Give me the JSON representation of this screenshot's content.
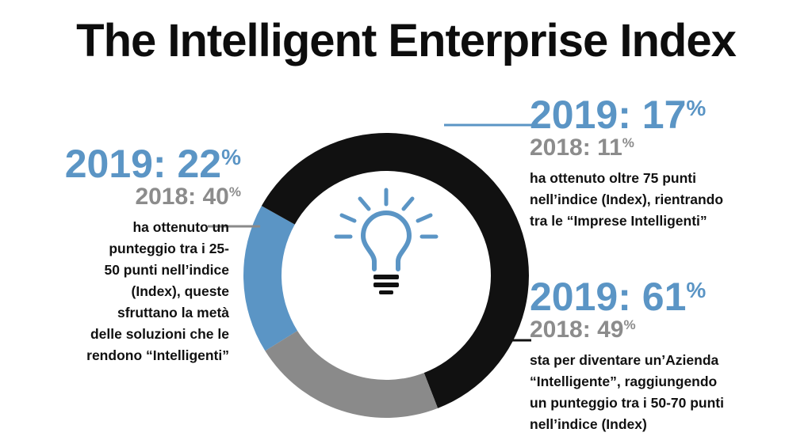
{
  "title": "The Intelligent Enterprise Index",
  "colors": {
    "blue": "#5b95c5",
    "gray": "#8a8a8a",
    "black": "#111111",
    "muted_text": "#8c8c8c"
  },
  "icon": "lightbulb-icon",
  "chart_data": {
    "type": "pie",
    "title": "The Intelligent Enterprise Index",
    "series": [
      {
        "values": [
          17,
          61,
          22
        ],
        "colors": [
          "#5b95c5",
          "#111111",
          "#8a8a8a"
        ]
      }
    ]
  },
  "segments": {
    "top": {
      "y2019_label": "2019: 17",
      "y2018_label": "2018: 11",
      "pct": "%",
      "desc": [
        "ha ottenuto oltre 75 punti",
        "nell’indice (Index), rientrando",
        "tra le “Imprese Intelligenti”"
      ]
    },
    "right": {
      "y2019_label": "2019: 61",
      "y2018_label": "2018: 49",
      "pct": "%",
      "desc": [
        "sta per diventare un’Azienda",
        "“Intelligente”, raggiungendo",
        "un punteggio tra i 50-70 punti",
        "nell’indice (Index)"
      ]
    },
    "left": {
      "y2019_label": "2019: 22",
      "y2018_label": "2018: 40",
      "pct": "%",
      "desc": [
        "ha ottenuto un",
        "punteggio tra i 25-",
        "50 punti nell’indice",
        "(Index), queste",
        "sfruttano la metà",
        "delle soluzioni che le",
        "rendono “Intelligenti”"
      ]
    }
  }
}
